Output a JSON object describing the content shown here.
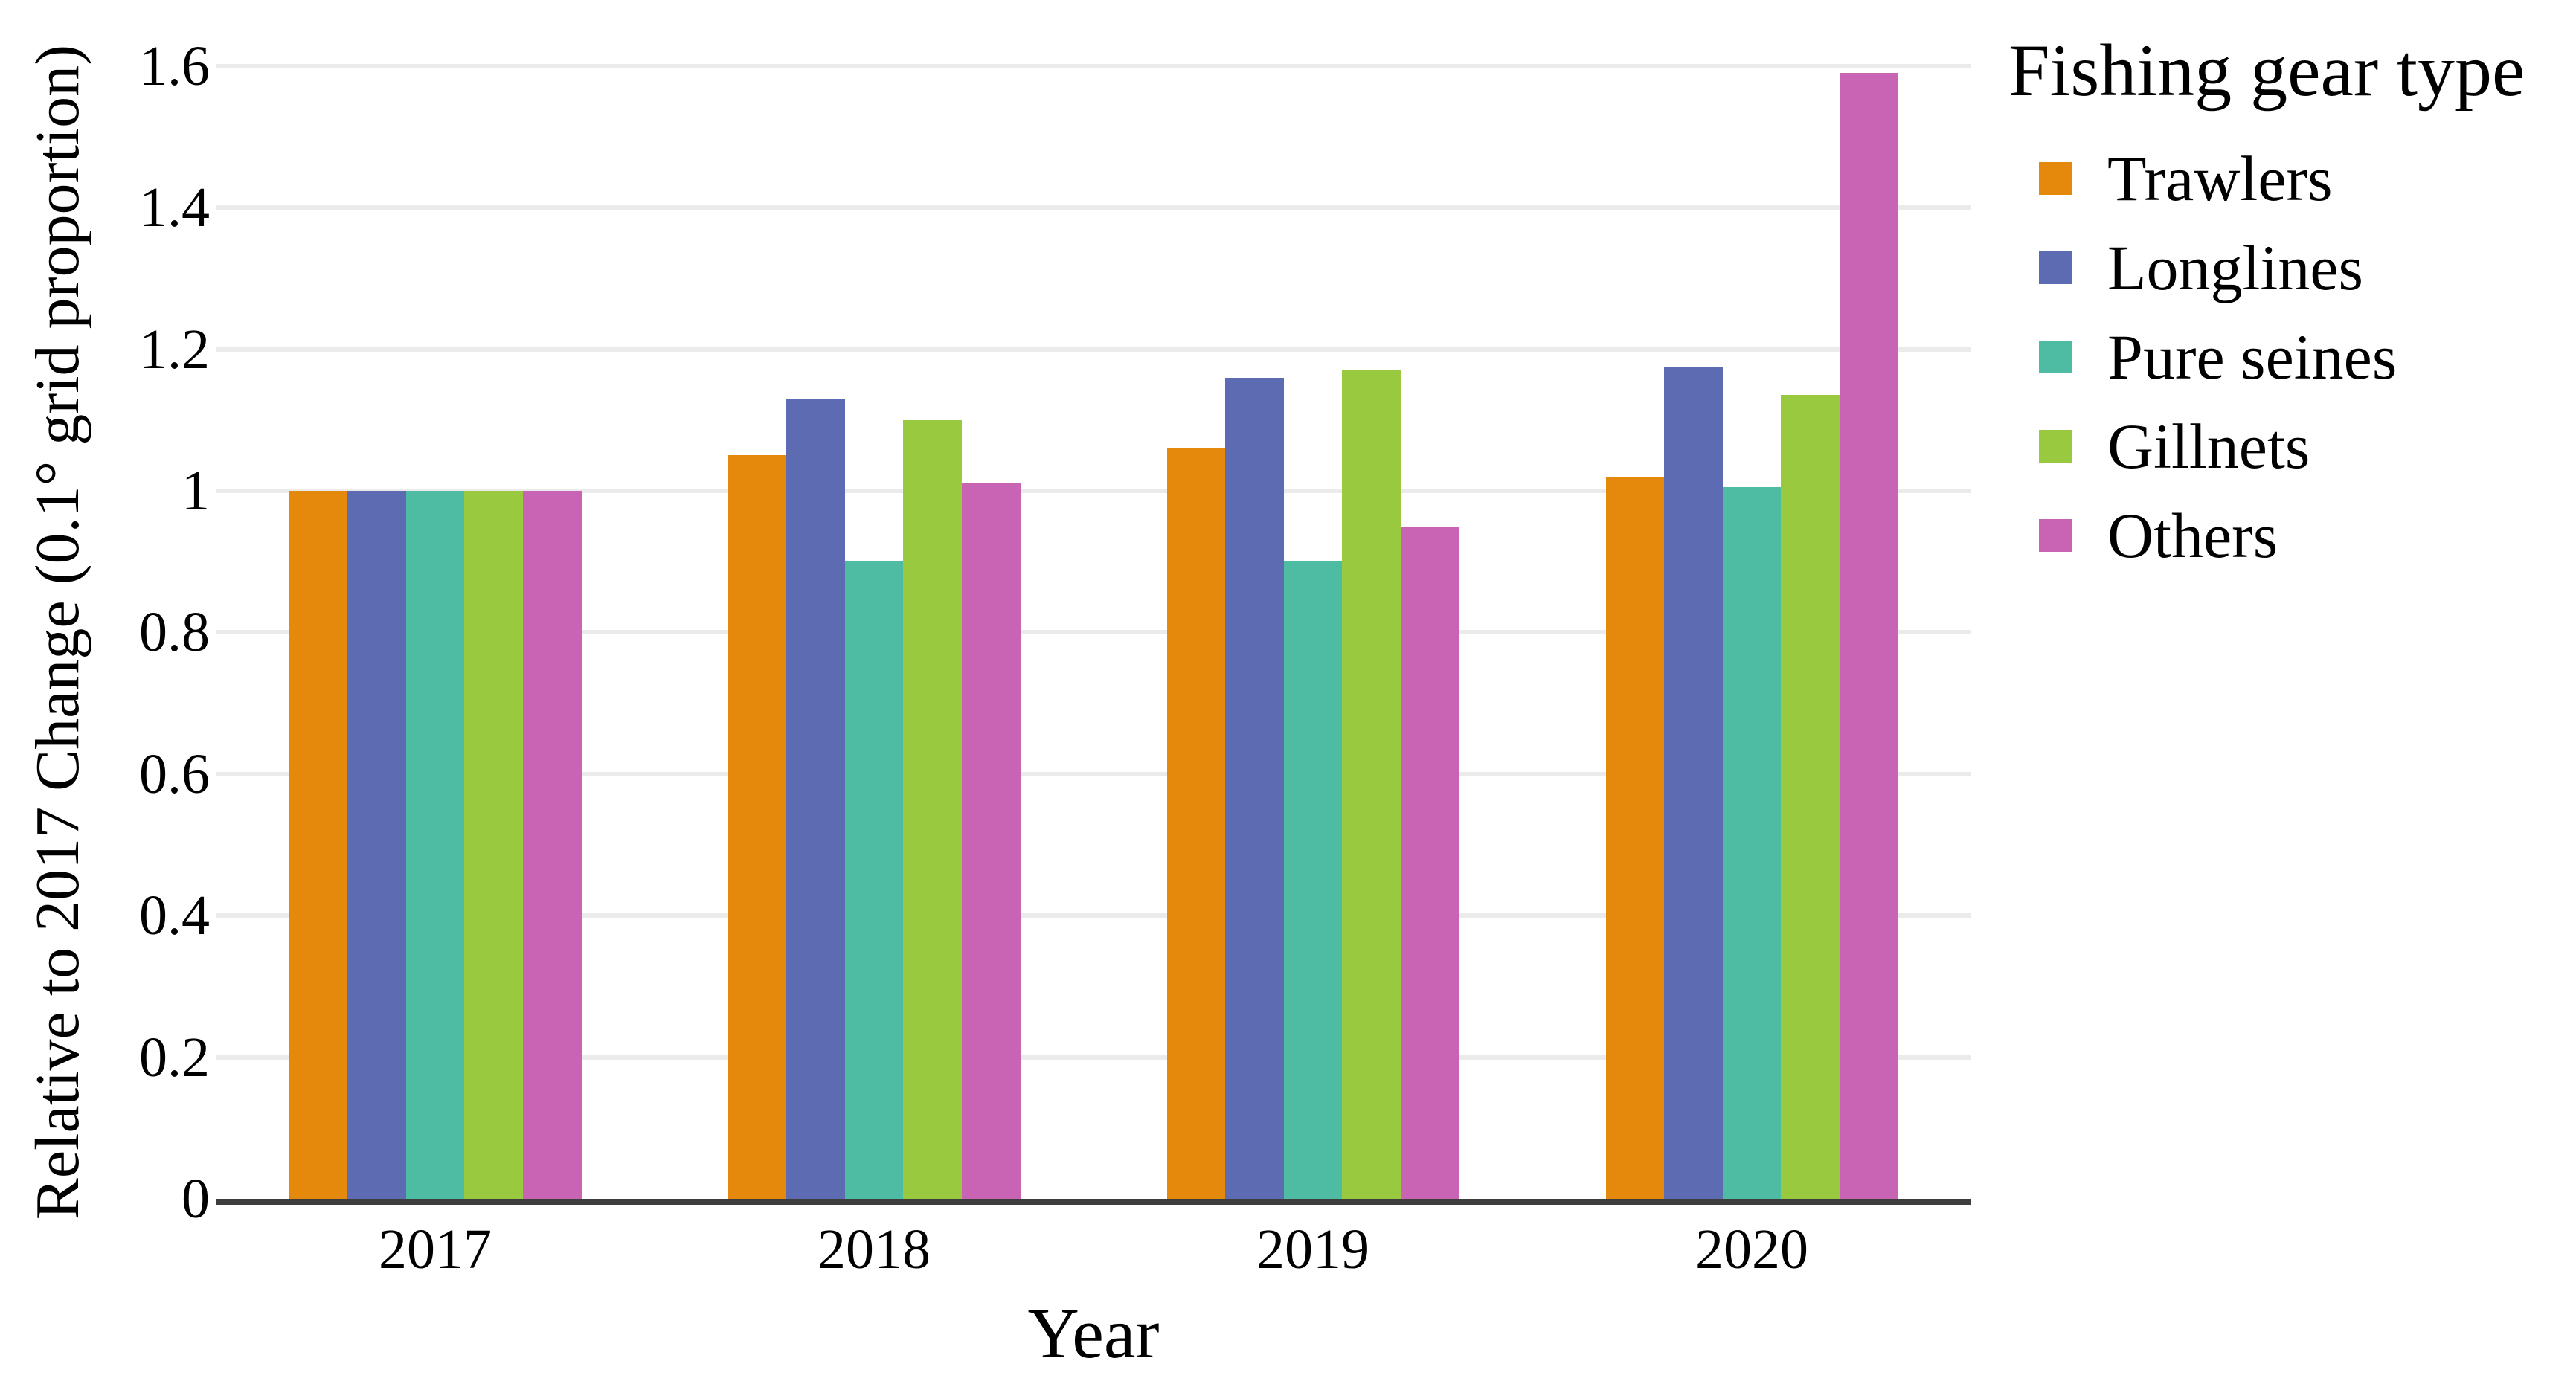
{
  "chart_data": {
    "type": "bar",
    "title": "",
    "categories": [
      "2017",
      "2018",
      "2019",
      "2020"
    ],
    "series": [
      {
        "name": "Trawlers",
        "color": "#E5890C",
        "values": [
          1.0,
          1.05,
          1.06,
          1.02
        ]
      },
      {
        "name": "Longlines",
        "color": "#5C6BB2",
        "values": [
          1.0,
          1.13,
          1.16,
          1.175
        ]
      },
      {
        "name": "Pure seines",
        "color": "#4EBCA2",
        "values": [
          1.0,
          0.9,
          0.9,
          1.005
        ]
      },
      {
        "name": "Gillnets",
        "color": "#99C93F",
        "values": [
          1.0,
          1.1,
          1.17,
          1.135
        ]
      },
      {
        "name": "Others",
        "color": "#C963B4",
        "values": [
          1.0,
          1.01,
          0.95,
          1.59
        ]
      }
    ],
    "xlabel": "Year",
    "ylabel": "Relative to 2017 Change (0.1° grid proportion)",
    "ylim": [
      0,
      1.65
    ],
    "yticks": [
      0,
      0.2,
      0.4,
      0.6,
      0.8,
      1,
      1.2,
      1.4,
      1.6
    ],
    "ytick_labels": [
      "0",
      "0.2",
      "0.4",
      "0.6",
      "0.8",
      "1",
      "1.2",
      "1.4",
      "1.6"
    ],
    "grid": "horizontal",
    "legend_title": "Fishing gear type",
    "legend_position": "right",
    "colors": {
      "axis_line": "#3D3D3D",
      "gridline": "#EBEBEB",
      "background": "#FFFFFF",
      "text": "#000000"
    }
  }
}
